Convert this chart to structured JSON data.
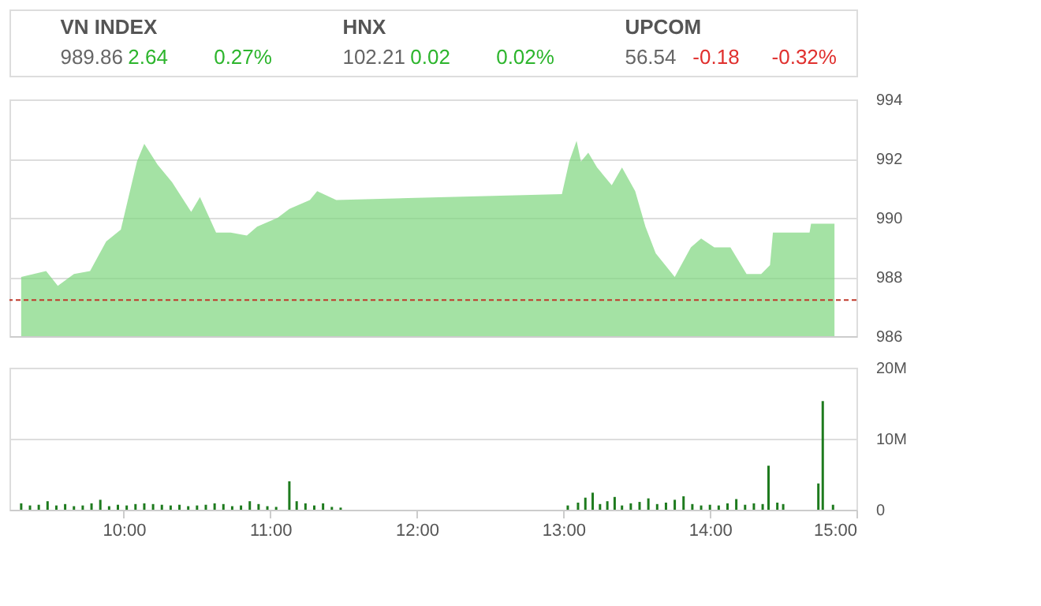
{
  "chart_data": [
    {
      "type": "other",
      "categories": [
        "VN INDEX",
        "HNX",
        "UPCOM"
      ],
      "annotations": [
        "989.86",
        "2.64",
        "0.27%",
        "102.21",
        "0.02",
        "0.02%",
        "56.54",
        "-0.18",
        "-0.32%"
      ],
      "colors": [
        "#2db52d",
        "#2db52d",
        "#e0302e"
      ]
    },
    {
      "type": "area",
      "x": [
        9.3,
        9.47,
        9.55,
        9.66,
        9.77,
        9.88,
        9.98,
        10.09,
        10.14,
        10.23,
        10.33,
        10.46,
        10.52,
        10.63,
        10.73,
        10.84,
        10.91,
        11.05,
        11.13,
        11.27,
        11.32,
        11.45,
        12.99,
        13.04,
        13.09,
        13.12,
        13.17,
        13.23,
        13.33,
        13.4,
        13.49,
        13.56,
        13.63,
        13.76,
        13.87,
        13.94,
        14.03,
        14.14,
        14.25,
        14.35,
        14.41,
        14.43,
        14.68,
        14.69,
        14.85
      ],
      "series": [
        {
          "color": "#7ed67e",
          "values": [
            988.0,
            988.2,
            987.7,
            988.1,
            988.2,
            989.2,
            989.6,
            991.9,
            992.5,
            991.8,
            991.2,
            990.2,
            990.7,
            989.5,
            989.5,
            989.4,
            989.7,
            990.0,
            990.3,
            990.6,
            990.9,
            990.6,
            990.8,
            991.9,
            992.6,
            991.9,
            992.2,
            991.7,
            991.1,
            991.7,
            990.9,
            989.7,
            988.8,
            988.0,
            989.0,
            989.3,
            989.0,
            989.0,
            988.1,
            988.1,
            988.4,
            989.5,
            989.5,
            989.8,
            989.8
          ]
        }
      ],
      "xlim": [
        9.22,
        15
      ],
      "ylim": [
        986,
        994
      ],
      "yticks": [
        986,
        988,
        990,
        992,
        994
      ],
      "grid": "y",
      "tick_labels": "y",
      "ref_lines": [
        {
          "axis": "y",
          "value": 987.22,
          "color": "#c0392b",
          "line_style": "dashed"
        }
      ]
    },
    {
      "type": "bar",
      "x": [
        9.3,
        9.36,
        9.42,
        9.48,
        9.54,
        9.6,
        9.66,
        9.72,
        9.78,
        9.84,
        9.9,
        9.96,
        10.02,
        10.08,
        10.14,
        10.2,
        10.26,
        10.32,
        10.38,
        10.44,
        10.5,
        10.56,
        10.62,
        10.68,
        10.74,
        10.8,
        10.86,
        10.92,
        10.98,
        11.04,
        11.13,
        11.18,
        11.24,
        11.3,
        11.36,
        11.42,
        11.48,
        13.03,
        13.1,
        13.15,
        13.2,
        13.25,
        13.3,
        13.35,
        13.4,
        13.46,
        13.52,
        13.58,
        13.64,
        13.7,
        13.76,
        13.82,
        13.88,
        13.94,
        14.0,
        14.06,
        14.12,
        14.18,
        14.24,
        14.3,
        14.36,
        14.4,
        14.46,
        14.5,
        14.74,
        14.77,
        14.84
      ],
      "series": [
        {
          "color": "#1e7b1e",
          "values": [
            0.9,
            0.6,
            0.7,
            1.2,
            0.6,
            0.8,
            0.5,
            0.6,
            0.9,
            1.4,
            0.5,
            0.7,
            0.6,
            0.8,
            0.9,
            0.8,
            0.7,
            0.6,
            0.7,
            0.5,
            0.6,
            0.7,
            0.9,
            0.8,
            0.5,
            0.6,
            1.2,
            0.8,
            0.5,
            0.4,
            4.0,
            1.2,
            0.9,
            0.6,
            0.9,
            0.4,
            0.3,
            0.6,
            1.0,
            1.7,
            2.4,
            0.8,
            1.2,
            1.8,
            0.6,
            0.9,
            1.1,
            1.6,
            0.8,
            1.0,
            1.4,
            1.9,
            0.8,
            0.6,
            0.7,
            0.6,
            0.9,
            1.5,
            0.7,
            0.9,
            0.8,
            6.2,
            1.0,
            0.8,
            3.7,
            15.3,
            0.7
          ]
        }
      ],
      "xlim": [
        9.22,
        15
      ],
      "xticks": [
        {
          "value": 10,
          "label": "10:00"
        },
        {
          "value": 11,
          "label": "11:00"
        },
        {
          "value": 12,
          "label": "12:00"
        },
        {
          "value": 13,
          "label": "13:00"
        },
        {
          "value": 14,
          "label": "14:00"
        },
        {
          "value": 15,
          "label": "15:00"
        }
      ],
      "ylim": [
        0,
        20
      ],
      "yticks": [
        0,
        {
          "value": 10,
          "label": "10M"
        },
        {
          "value": 20,
          "label": "20M"
        }
      ],
      "grid": "y"
    }
  ]
}
